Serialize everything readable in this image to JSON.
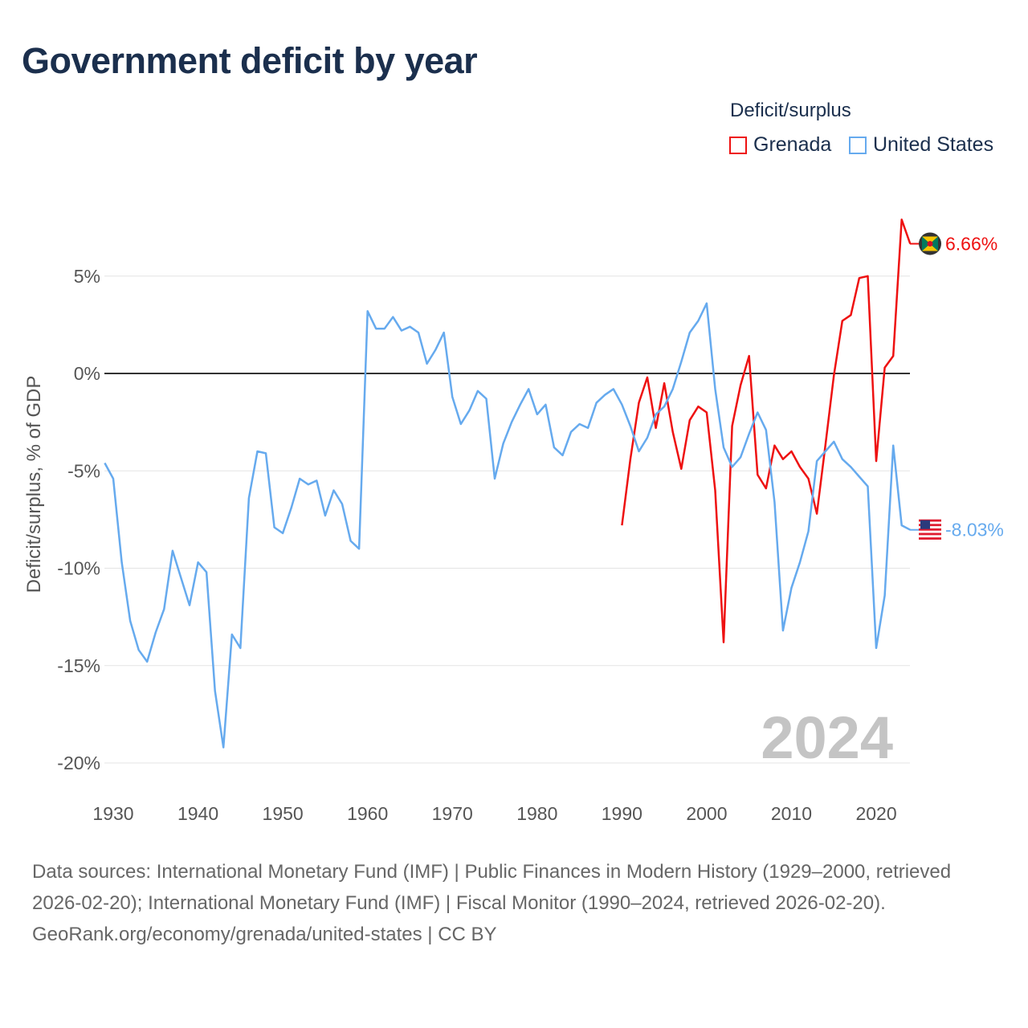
{
  "title": "Government deficit by year",
  "legend": {
    "title": "Deficit/surplus",
    "items": [
      {
        "label": "Grenada",
        "color": "#ee1111"
      },
      {
        "label": "United States",
        "color": "#66aaee"
      }
    ]
  },
  "footer": {
    "sources": "Data sources: International Monetary Fund (IMF) | Public Finances in Modern History (1929–2000, retrieved 2026-02-20); International Monetary Fund (IMF) | Fiscal Monitor (1990–2024, retrieved 2026-02-20).",
    "credit": "GeoRank.org/economy/grenada/united-states | CC BY"
  },
  "chart_data": {
    "type": "line",
    "title": "Government deficit by year",
    "xlabel": "",
    "ylabel": "Deficit/surplus, % of GDP",
    "xlim": [
      1929,
      2024
    ],
    "ylim": [
      -20,
      8
    ],
    "x_ticks": [
      1930,
      1940,
      1950,
      1960,
      1970,
      1980,
      1990,
      2000,
      2010,
      2020
    ],
    "y_ticks": [
      {
        "v": 5,
        "label": "5%"
      },
      {
        "v": 0,
        "label": "0%"
      },
      {
        "v": -5,
        "label": "-5%"
      },
      {
        "v": -10,
        "label": "-10%"
      },
      {
        "v": -15,
        "label": "-15%"
      },
      {
        "v": -20,
        "label": "-20%"
      }
    ],
    "year_watermark": "2024",
    "series": [
      {
        "name": "Grenada",
        "color": "#ee1111",
        "start": 1990,
        "end_label": "6.66%",
        "values": [
          -7.8,
          -4.4,
          -1.5,
          -0.2,
          -2.8,
          -0.5,
          -3.0,
          -4.9,
          -2.4,
          -1.7,
          -2.0,
          -6.0,
          -13.8,
          -2.7,
          -0.6,
          0.9,
          -5.2,
          -5.9,
          -3.7,
          -4.4,
          -4.0,
          -4.8,
          -5.4,
          -7.2,
          -3.7,
          -0.1,
          2.7,
          3.0,
          4.9,
          5.0,
          -4.5,
          0.3,
          0.9,
          7.9,
          6.66
        ]
      },
      {
        "name": "United States",
        "color": "#66aaee",
        "start": 1929,
        "end_label": "-8.03%",
        "values": [
          -4.6,
          -5.4,
          -9.7,
          -12.7,
          -14.2,
          -14.8,
          -13.3,
          -12.1,
          -9.1,
          -10.5,
          -11.9,
          -9.7,
          -10.2,
          -16.3,
          -19.2,
          -13.4,
          -14.1,
          -6.4,
          -4.0,
          -4.1,
          -7.9,
          -8.2,
          -6.9,
          -5.4,
          -5.7,
          -5.5,
          -7.3,
          -6.0,
          -6.7,
          -8.6,
          -9.0,
          3.2,
          2.3,
          2.3,
          2.9,
          2.2,
          2.4,
          2.1,
          0.5,
          1.2,
          2.1,
          -1.2,
          -2.6,
          -1.9,
          -0.9,
          -1.3,
          -5.4,
          -3.6,
          -2.5,
          -1.6,
          -0.8,
          -2.1,
          -1.6,
          -3.8,
          -4.2,
          -3.0,
          -2.6,
          -2.8,
          -1.5,
          -1.1,
          -0.8,
          -1.6,
          -2.7,
          -4.0,
          -3.3,
          -2.1,
          -1.7,
          -0.8,
          0.6,
          2.1,
          2.7,
          3.6,
          -0.8,
          -3.8,
          -4.8,
          -4.3,
          -3.1,
          -2.0,
          -2.9,
          -6.6,
          -13.2,
          -11.0,
          -9.7,
          -8.1,
          -4.5,
          -4.0,
          -3.5,
          -4.4,
          -4.8,
          -5.3,
          -5.8,
          -14.1,
          -11.4,
          -3.7,
          -7.8,
          -8.03
        ]
      }
    ]
  }
}
